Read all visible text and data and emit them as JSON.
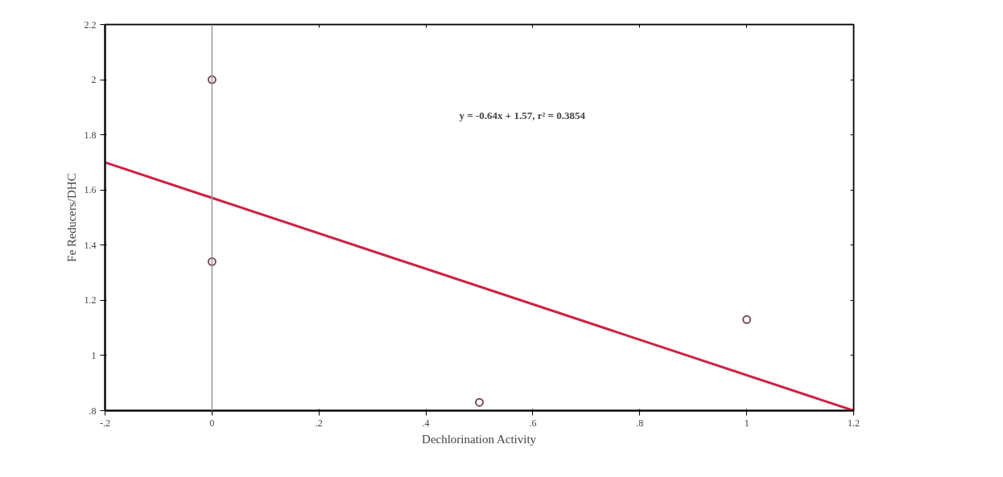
{
  "chart_data": {
    "type": "scatter",
    "xlabel": "Dechlorination Activity",
    "ylabel": "Fe Reducers/DHC",
    "annotations": [
      "y = -0.64x + 1.57, r² = 0.3854"
    ],
    "grid": false,
    "xlim": [
      -0.2,
      1.2
    ],
    "ylim": [
      0.8,
      2.2
    ],
    "xticks": [
      {
        "value": -0.2,
        "label": "-.2"
      },
      0,
      {
        "value": 0.2,
        "label": ".2"
      },
      {
        "value": 0.4,
        "label": ".4"
      },
      {
        "value": 0.6,
        "label": ".6"
      },
      {
        "value": 0.8,
        "label": ".8"
      },
      1,
      1.2
    ],
    "yticks": [
      {
        "value": 0.8,
        "label": ".8"
      },
      1,
      1.2,
      1.4,
      1.6,
      1.8,
      2,
      2.2
    ],
    "ref_lines": [
      {
        "axis": "x",
        "value": 0,
        "color": "#999999"
      }
    ],
    "series": [
      {
        "marker": "circle",
        "color": "#7a4a5a",
        "x": [
          0,
          0,
          0.5,
          1
        ],
        "values": [
          2.0,
          1.34,
          0.83,
          1.13
        ]
      },
      {
        "type": "line",
        "color": "#cc2244",
        "x": [
          -0.2,
          1.2
        ],
        "values": [
          1.7,
          0.8
        ]
      }
    ]
  }
}
